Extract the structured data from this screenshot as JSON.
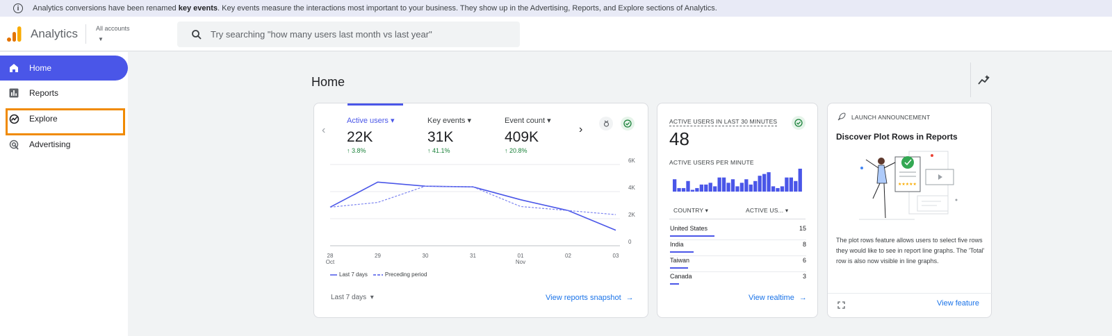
{
  "banner": {
    "prefix": "Analytics conversions have been renamed ",
    "bold": "key events",
    "suffix": ". Key events measure the interactions most important to your business. They show up in the Advertising, Reports, and Explore sections of Analytics."
  },
  "header": {
    "app_name": "Analytics",
    "account_label": "All accounts",
    "search_placeholder": "Try searching \"how many users last month vs last year\""
  },
  "sidebar": {
    "items": [
      {
        "label": "Home",
        "icon": "home-icon"
      },
      {
        "label": "Reports",
        "icon": "bar-chart-icon"
      },
      {
        "label": "Explore",
        "icon": "explore-icon"
      },
      {
        "label": "Advertising",
        "icon": "advertising-icon"
      }
    ]
  },
  "main": {
    "title": "Home"
  },
  "overview": {
    "metrics": [
      {
        "label": "Active users",
        "value": "22K",
        "change": "3.8%"
      },
      {
        "label": "Key events",
        "value": "31K",
        "change": "41.1%"
      },
      {
        "label": "Event count",
        "value": "409K",
        "change": "20.8%"
      }
    ],
    "legend_current": "Last 7 days",
    "legend_previous": "Preceding period",
    "date_range": "Last 7 days",
    "link": "View reports snapshot"
  },
  "chart_data": {
    "type": "line",
    "x": [
      "28 Oct",
      "29",
      "30",
      "31",
      "01 Nov",
      "02",
      "03"
    ],
    "x_tick_labels": [
      [
        "28",
        "Oct"
      ],
      [
        "29",
        ""
      ],
      [
        "30",
        ""
      ],
      [
        "31",
        ""
      ],
      [
        "01",
        "Nov"
      ],
      [
        "02",
        ""
      ],
      [
        "03",
        ""
      ]
    ],
    "y_ticks": [
      "0",
      "2K",
      "4K",
      "6K"
    ],
    "ylim": [
      0,
      6000
    ],
    "series": [
      {
        "name": "Last 7 days",
        "values": [
          2850,
          4700,
          4400,
          4350,
          3400,
          2600,
          1150
        ]
      },
      {
        "name": "Preceding period",
        "values": [
          2850,
          3200,
          4400,
          4350,
          2900,
          2600,
          2300
        ]
      }
    ],
    "colors": {
      "current": "#4a56e8",
      "previous": "#7b83f0"
    }
  },
  "realtime": {
    "title": "ACTIVE USERS IN LAST 30 MINUTES",
    "value": "48",
    "per_minute_label": "ACTIVE USERS PER MINUTE",
    "per_minute": [
      7,
      2,
      2,
      6,
      1,
      2,
      4,
      4,
      5,
      3,
      8,
      8,
      5,
      7,
      3,
      5,
      7,
      4,
      6,
      9,
      10,
      11,
      3,
      2,
      3,
      8,
      8,
      6,
      13
    ],
    "col_country": "COUNTRY",
    "col_users": "ACTIVE US...",
    "rows": [
      {
        "country": "United States",
        "value": "15",
        "fraction": 1.0
      },
      {
        "country": "India",
        "value": "8",
        "fraction": 0.53
      },
      {
        "country": "Taiwan",
        "value": "6",
        "fraction": 0.4
      },
      {
        "country": "Canada",
        "value": "3",
        "fraction": 0.2
      }
    ],
    "link": "View realtime"
  },
  "announcement": {
    "tag": "LAUNCH ANNOUNCEMENT",
    "title": "Discover Plot Rows in Reports",
    "desc": "The plot rows feature allows users to select five rows they would like to see in report line graphs. The 'Total' row is also now visible in line graphs.",
    "link": "View feature"
  }
}
